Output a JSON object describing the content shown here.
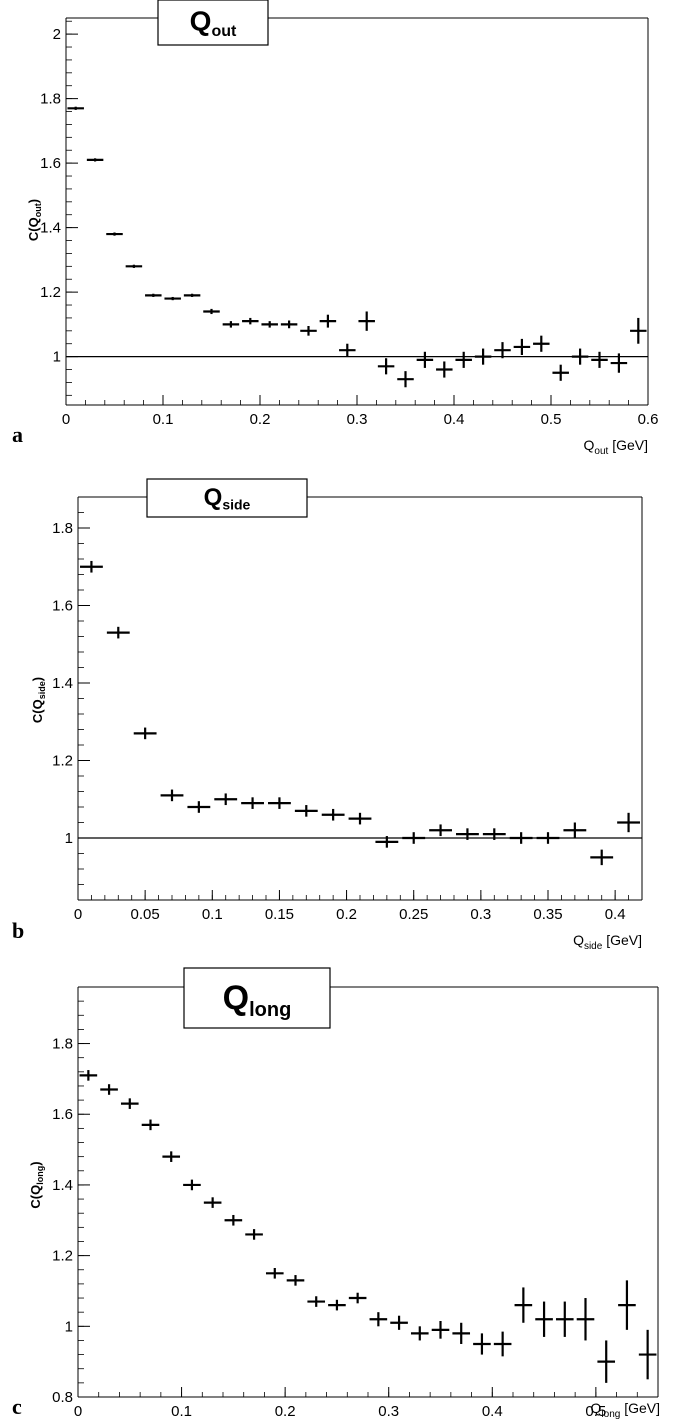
{
  "chart_data": [
    {
      "type": "scatter",
      "panel": "a",
      "title": "Q",
      "title_sub": "out",
      "ylabel": "C(Q",
      "ylabel_sub": "out",
      "ylabel_end": ")",
      "xlabel": "Q",
      "xlabel_sub": "out",
      "xlabel_unit": " [GeV]",
      "xlim": [
        0,
        0.6
      ],
      "ylim": [
        0.85,
        2.05
      ],
      "xticks": [
        0,
        0.1,
        0.2,
        0.3,
        0.4,
        0.5,
        0.6
      ],
      "xtick_labels": [
        "0",
        "0.1",
        "0.2",
        "0.3",
        "0.4",
        "0.5",
        "0.6"
      ],
      "yticks": [
        1,
        1.2,
        1.4,
        1.6,
        1.8,
        2
      ],
      "ytick_labels": [
        "1",
        "1.2",
        "1.4",
        "1.6",
        "1.8",
        "2"
      ],
      "reference_line": 1,
      "x": [
        0.01,
        0.03,
        0.05,
        0.07,
        0.09,
        0.11,
        0.13,
        0.15,
        0.17,
        0.19,
        0.21,
        0.23,
        0.25,
        0.27,
        0.29,
        0.31,
        0.33,
        0.35,
        0.37,
        0.39,
        0.41,
        0.43,
        0.45,
        0.47,
        0.49,
        0.51,
        0.53,
        0.55,
        0.57,
        0.59
      ],
      "y": [
        1.77,
        1.61,
        1.38,
        1.28,
        1.19,
        1.18,
        1.19,
        1.14,
        1.1,
        1.11,
        1.1,
        1.1,
        1.08,
        1.11,
        1.02,
        1.11,
        0.97,
        0.93,
        0.99,
        0.96,
        0.99,
        1.0,
        1.02,
        1.03,
        1.04,
        0.95,
        1.0,
        0.99,
        0.98,
        1.08
      ],
      "y_err": [
        0.005,
        0.005,
        0.005,
        0.005,
        0.005,
        0.005,
        0.005,
        0.008,
        0.01,
        0.01,
        0.01,
        0.012,
        0.015,
        0.02,
        0.02,
        0.03,
        0.025,
        0.025,
        0.025,
        0.025,
        0.025,
        0.025,
        0.025,
        0.025,
        0.025,
        0.025,
        0.025,
        0.025,
        0.03,
        0.04
      ],
      "grid": false
    },
    {
      "type": "scatter",
      "panel": "b",
      "title": "Q",
      "title_sub": "side",
      "ylabel": "C(Q",
      "ylabel_sub": "side",
      "ylabel_end": ")",
      "xlabel": "Q",
      "xlabel_sub": "side",
      "xlabel_unit": " [GeV]",
      "xlim": [
        0,
        0.42
      ],
      "ylim": [
        0.84,
        1.88
      ],
      "xticks": [
        0,
        0.05,
        0.1,
        0.15,
        0.2,
        0.25,
        0.3,
        0.35,
        0.4
      ],
      "xtick_labels": [
        "0",
        "0.05",
        "0.1",
        "0.15",
        "0.2",
        "0.25",
        "0.3",
        "0.35",
        "0.4"
      ],
      "yticks": [
        1,
        1.2,
        1.4,
        1.6,
        1.8
      ],
      "ytick_labels": [
        "1",
        "1.2",
        "1.4",
        "1.6",
        "1.8"
      ],
      "reference_line": 1,
      "x": [
        0.01,
        0.03,
        0.05,
        0.07,
        0.09,
        0.11,
        0.13,
        0.15,
        0.17,
        0.19,
        0.21,
        0.23,
        0.25,
        0.27,
        0.29,
        0.31,
        0.33,
        0.35,
        0.37,
        0.39,
        0.41
      ],
      "y": [
        1.7,
        1.53,
        1.27,
        1.11,
        1.08,
        1.1,
        1.09,
        1.09,
        1.07,
        1.06,
        1.05,
        0.99,
        1.0,
        1.02,
        1.01,
        1.01,
        1.0,
        1.0,
        1.02,
        0.95,
        1.04
      ],
      "y_err": [
        0.015,
        0.015,
        0.015,
        0.015,
        0.015,
        0.015,
        0.015,
        0.015,
        0.015,
        0.015,
        0.015,
        0.015,
        0.015,
        0.015,
        0.015,
        0.015,
        0.015,
        0.015,
        0.02,
        0.02,
        0.025
      ],
      "grid": false
    },
    {
      "type": "scatter",
      "panel": "c",
      "title": "Q",
      "title_sub": "long",
      "ylabel": "C(Q",
      "ylabel_sub": "long",
      "ylabel_end": ")",
      "xlabel": "Q",
      "xlabel_sub": "long",
      "xlabel_unit": " [GeV]",
      "xlim": [
        0,
        0.56
      ],
      "ylim": [
        0.8,
        1.96
      ],
      "xticks": [
        0,
        0.1,
        0.2,
        0.3,
        0.4,
        0.5
      ],
      "xtick_labels": [
        "0",
        "0.1",
        "0.2",
        "0.3",
        "0.4",
        "0.5"
      ],
      "yticks": [
        0.8,
        1,
        1.2,
        1.4,
        1.6,
        1.8
      ],
      "ytick_labels": [
        "0.8",
        "1",
        "1.2",
        "1.4",
        "1.6",
        "1.8"
      ],
      "reference_line": null,
      "x": [
        0.01,
        0.03,
        0.05,
        0.07,
        0.09,
        0.11,
        0.13,
        0.15,
        0.17,
        0.19,
        0.21,
        0.23,
        0.25,
        0.27,
        0.29,
        0.31,
        0.33,
        0.35,
        0.37,
        0.39,
        0.41,
        0.43,
        0.45,
        0.47,
        0.49,
        0.51,
        0.53,
        0.55
      ],
      "y": [
        1.71,
        1.67,
        1.63,
        1.57,
        1.48,
        1.4,
        1.35,
        1.3,
        1.26,
        1.15,
        1.13,
        1.07,
        1.06,
        1.08,
        1.02,
        1.01,
        0.98,
        0.99,
        0.98,
        0.95,
        0.95,
        1.06,
        1.02,
        1.02,
        1.02,
        0.9,
        1.06,
        0.92
      ],
      "y_err": [
        0.015,
        0.015,
        0.015,
        0.015,
        0.015,
        0.015,
        0.015,
        0.015,
        0.015,
        0.015,
        0.015,
        0.015,
        0.015,
        0.015,
        0.02,
        0.02,
        0.02,
        0.025,
        0.03,
        0.03,
        0.035,
        0.05,
        0.05,
        0.05,
        0.06,
        0.06,
        0.07,
        0.07
      ],
      "grid": false
    }
  ]
}
